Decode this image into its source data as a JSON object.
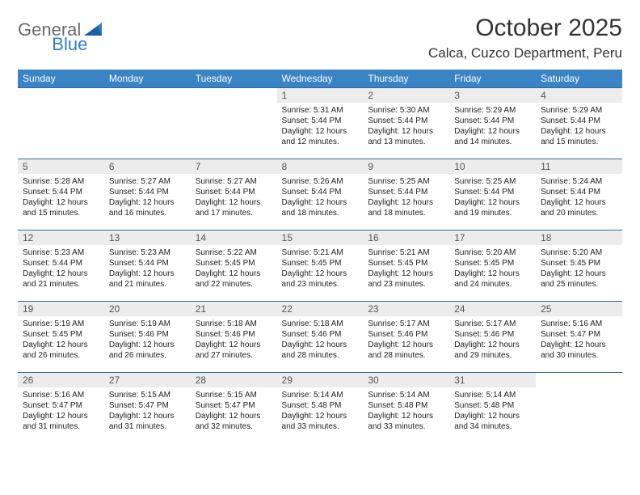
{
  "brand": {
    "part1": "General",
    "part2": "Blue"
  },
  "title": "October 2025",
  "location": "Calca, Cuzco Department, Peru",
  "colors": {
    "header_bg": "#3a84c5",
    "row_border": "#2f6aa0",
    "daynum_bg": "#ececec",
    "logo_gray": "#6b6b6b",
    "logo_blue": "#2f7fc2"
  },
  "dayNames": [
    "Sunday",
    "Monday",
    "Tuesday",
    "Wednesday",
    "Thursday",
    "Friday",
    "Saturday"
  ],
  "weeks": [
    [
      {
        "blank": true
      },
      {
        "blank": true
      },
      {
        "blank": true
      },
      {
        "n": "1",
        "sr": "5:31 AM",
        "ss": "5:44 PM",
        "dl": "12 hours and 12 minutes."
      },
      {
        "n": "2",
        "sr": "5:30 AM",
        "ss": "5:44 PM",
        "dl": "12 hours and 13 minutes."
      },
      {
        "n": "3",
        "sr": "5:29 AM",
        "ss": "5:44 PM",
        "dl": "12 hours and 14 minutes."
      },
      {
        "n": "4",
        "sr": "5:29 AM",
        "ss": "5:44 PM",
        "dl": "12 hours and 15 minutes."
      }
    ],
    [
      {
        "n": "5",
        "sr": "5:28 AM",
        "ss": "5:44 PM",
        "dl": "12 hours and 15 minutes."
      },
      {
        "n": "6",
        "sr": "5:27 AM",
        "ss": "5:44 PM",
        "dl": "12 hours and 16 minutes."
      },
      {
        "n": "7",
        "sr": "5:27 AM",
        "ss": "5:44 PM",
        "dl": "12 hours and 17 minutes."
      },
      {
        "n": "8",
        "sr": "5:26 AM",
        "ss": "5:44 PM",
        "dl": "12 hours and 18 minutes."
      },
      {
        "n": "9",
        "sr": "5:25 AM",
        "ss": "5:44 PM",
        "dl": "12 hours and 18 minutes."
      },
      {
        "n": "10",
        "sr": "5:25 AM",
        "ss": "5:44 PM",
        "dl": "12 hours and 19 minutes."
      },
      {
        "n": "11",
        "sr": "5:24 AM",
        "ss": "5:44 PM",
        "dl": "12 hours and 20 minutes."
      }
    ],
    [
      {
        "n": "12",
        "sr": "5:23 AM",
        "ss": "5:44 PM",
        "dl": "12 hours and 21 minutes."
      },
      {
        "n": "13",
        "sr": "5:23 AM",
        "ss": "5:44 PM",
        "dl": "12 hours and 21 minutes."
      },
      {
        "n": "14",
        "sr": "5:22 AM",
        "ss": "5:45 PM",
        "dl": "12 hours and 22 minutes."
      },
      {
        "n": "15",
        "sr": "5:21 AM",
        "ss": "5:45 PM",
        "dl": "12 hours and 23 minutes."
      },
      {
        "n": "16",
        "sr": "5:21 AM",
        "ss": "5:45 PM",
        "dl": "12 hours and 23 minutes."
      },
      {
        "n": "17",
        "sr": "5:20 AM",
        "ss": "5:45 PM",
        "dl": "12 hours and 24 minutes."
      },
      {
        "n": "18",
        "sr": "5:20 AM",
        "ss": "5:45 PM",
        "dl": "12 hours and 25 minutes."
      }
    ],
    [
      {
        "n": "19",
        "sr": "5:19 AM",
        "ss": "5:45 PM",
        "dl": "12 hours and 26 minutes."
      },
      {
        "n": "20",
        "sr": "5:19 AM",
        "ss": "5:46 PM",
        "dl": "12 hours and 26 minutes."
      },
      {
        "n": "21",
        "sr": "5:18 AM",
        "ss": "5:46 PM",
        "dl": "12 hours and 27 minutes."
      },
      {
        "n": "22",
        "sr": "5:18 AM",
        "ss": "5:46 PM",
        "dl": "12 hours and 28 minutes."
      },
      {
        "n": "23",
        "sr": "5:17 AM",
        "ss": "5:46 PM",
        "dl": "12 hours and 28 minutes."
      },
      {
        "n": "24",
        "sr": "5:17 AM",
        "ss": "5:46 PM",
        "dl": "12 hours and 29 minutes."
      },
      {
        "n": "25",
        "sr": "5:16 AM",
        "ss": "5:47 PM",
        "dl": "12 hours and 30 minutes."
      }
    ],
    [
      {
        "n": "26",
        "sr": "5:16 AM",
        "ss": "5:47 PM",
        "dl": "12 hours and 31 minutes."
      },
      {
        "n": "27",
        "sr": "5:15 AM",
        "ss": "5:47 PM",
        "dl": "12 hours and 31 minutes."
      },
      {
        "n": "28",
        "sr": "5:15 AM",
        "ss": "5:47 PM",
        "dl": "12 hours and 32 minutes."
      },
      {
        "n": "29",
        "sr": "5:14 AM",
        "ss": "5:48 PM",
        "dl": "12 hours and 33 minutes."
      },
      {
        "n": "30",
        "sr": "5:14 AM",
        "ss": "5:48 PM",
        "dl": "12 hours and 33 minutes."
      },
      {
        "n": "31",
        "sr": "5:14 AM",
        "ss": "5:48 PM",
        "dl": "12 hours and 34 minutes."
      },
      {
        "blank": true
      }
    ]
  ],
  "labels": {
    "sunrise": "Sunrise: ",
    "sunset": "Sunset: ",
    "daylight": "Daylight: "
  }
}
